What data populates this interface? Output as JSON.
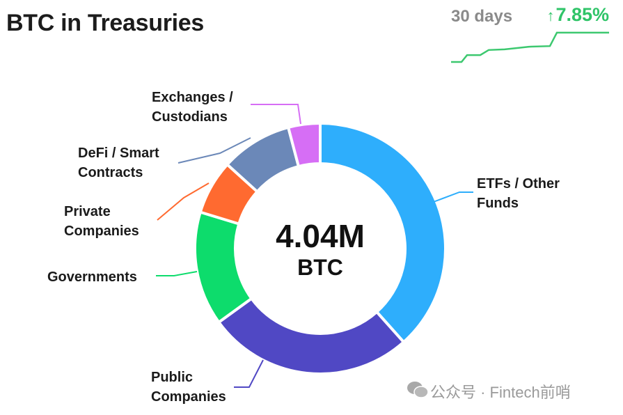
{
  "header": {
    "title": "BTC in Treasuries",
    "period_label": "30 days",
    "change_arrow": "↑",
    "change_value": "7.85%",
    "change_color": "#2fc468"
  },
  "sparkline": {
    "direction": "up",
    "relative_values": [
      0,
      0,
      23,
      23,
      40,
      42,
      47,
      51,
      53,
      98,
      98
    ]
  },
  "chart_data": {
    "type": "pie",
    "variant": "donut",
    "center_value": "4.04M",
    "center_unit": "BTC",
    "unit": "approximate share of total (%)",
    "categories": [
      "ETFs / Other Funds",
      "Public Companies",
      "Governments",
      "Private Companies",
      "DeFi / Smart Contracts",
      "Exchanges / Custodians"
    ],
    "values": [
      38.4,
      26.6,
      14.7,
      7.0,
      9.2,
      4.1
    ],
    "colors": [
      "#2eaefc",
      "#5048c4",
      "#0ddc6c",
      "#ff6a30",
      "#6b88b8",
      "#d66ef5"
    ],
    "labels": [
      [
        "ETFs / Other",
        "Funds"
      ],
      [
        "Public",
        "Companies"
      ],
      [
        "Governments"
      ],
      [
        "Private",
        "Companies"
      ],
      [
        "DeFi / Smart",
        "Contracts"
      ],
      [
        "Exchanges /",
        "Custodians"
      ]
    ]
  },
  "watermark": {
    "text": "公众号 · Fintech前哨"
  }
}
